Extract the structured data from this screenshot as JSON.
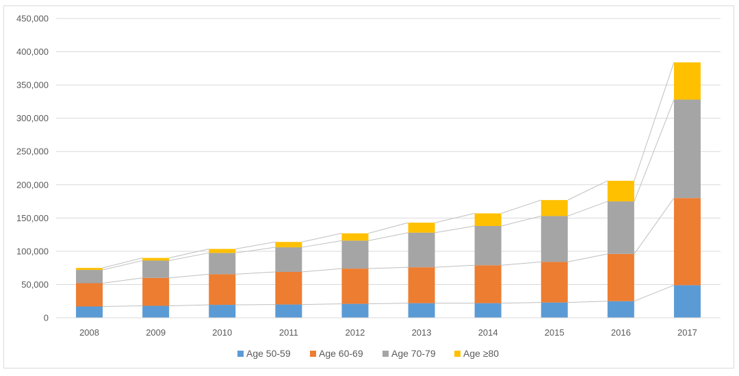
{
  "chart_data": {
    "type": "bar",
    "stacked": true,
    "series_lines": true,
    "title": "",
    "xlabel": "",
    "ylabel": "",
    "ylim": [
      0,
      450000
    ],
    "y_ticks": [
      0,
      50000,
      100000,
      150000,
      200000,
      250000,
      300000,
      350000,
      400000,
      450000
    ],
    "y_tick_labels": [
      "0",
      "50,000",
      "100,000",
      "150,000",
      "200,000",
      "250,000",
      "300,000",
      "350,000",
      "400,000",
      "450,000"
    ],
    "grid": true,
    "legend_position": "bottom",
    "categories": [
      "2008",
      "2009",
      "2010",
      "2011",
      "2012",
      "2013",
      "2014",
      "2015",
      "2016",
      "2017"
    ],
    "series": [
      {
        "name": "Age 50-59",
        "color": "#5b9bd5",
        "values": [
          17000,
          18000,
          19500,
          20000,
          21000,
          22000,
          22000,
          23000,
          25000,
          49000
        ]
      },
      {
        "name": "Age 60-69",
        "color": "#ed7d31",
        "values": [
          35000,
          42000,
          46000,
          49000,
          53000,
          54000,
          57000,
          61000,
          71000,
          131000
        ]
      },
      {
        "name": "Age 70-79",
        "color": "#a5a5a5",
        "values": [
          20000,
          26000,
          32000,
          37000,
          42000,
          52000,
          59000,
          69000,
          79000,
          148000
        ]
      },
      {
        "name": "Age ≥80",
        "color": "#ffc000",
        "values": [
          3000,
          4000,
          6000,
          8000,
          11000,
          15000,
          19000,
          24000,
          31000,
          56000
        ]
      }
    ]
  }
}
